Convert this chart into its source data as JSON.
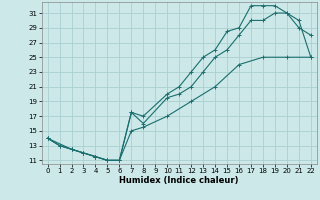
{
  "xlabel": "Humidex (Indice chaleur)",
  "xlim": [
    -0.5,
    22.5
  ],
  "ylim": [
    10.5,
    32.5
  ],
  "xticks": [
    0,
    1,
    2,
    3,
    4,
    5,
    6,
    7,
    8,
    9,
    10,
    11,
    12,
    13,
    14,
    15,
    16,
    17,
    18,
    19,
    20,
    21,
    22
  ],
  "yticks": [
    11,
    13,
    15,
    17,
    19,
    21,
    23,
    25,
    27,
    29,
    31
  ],
  "bg_color": "#cce8e8",
  "grid_color": "#aacfcf",
  "line_color": "#1a6e6e",
  "line1_x": [
    0,
    1,
    2,
    3,
    4,
    5,
    6,
    7,
    8,
    10,
    11,
    12,
    13,
    14,
    15,
    16,
    17,
    18,
    19,
    20,
    21,
    22
  ],
  "line1_y": [
    14,
    13,
    12.5,
    12,
    11.5,
    11,
    11,
    17.5,
    17,
    20,
    21,
    23,
    25,
    26,
    28.5,
    29,
    32,
    32,
    32,
    31,
    30,
    25
  ],
  "line2_x": [
    0,
    1,
    2,
    3,
    4,
    5,
    6,
    7,
    8,
    10,
    11,
    12,
    13,
    14,
    15,
    16,
    17,
    18,
    19,
    20,
    21,
    22
  ],
  "line2_y": [
    14,
    13,
    12.5,
    12,
    11.5,
    11,
    11,
    17.5,
    16,
    19.5,
    20,
    21,
    23,
    25,
    26,
    28,
    30,
    30,
    31,
    31,
    29,
    28
  ],
  "line3_x": [
    0,
    2,
    3,
    4,
    5,
    6,
    7,
    8,
    10,
    12,
    14,
    16,
    18,
    20,
    22
  ],
  "line3_y": [
    14,
    12.5,
    12,
    11.5,
    11,
    11,
    15,
    15.5,
    17,
    19,
    21,
    24,
    25,
    25,
    25
  ]
}
